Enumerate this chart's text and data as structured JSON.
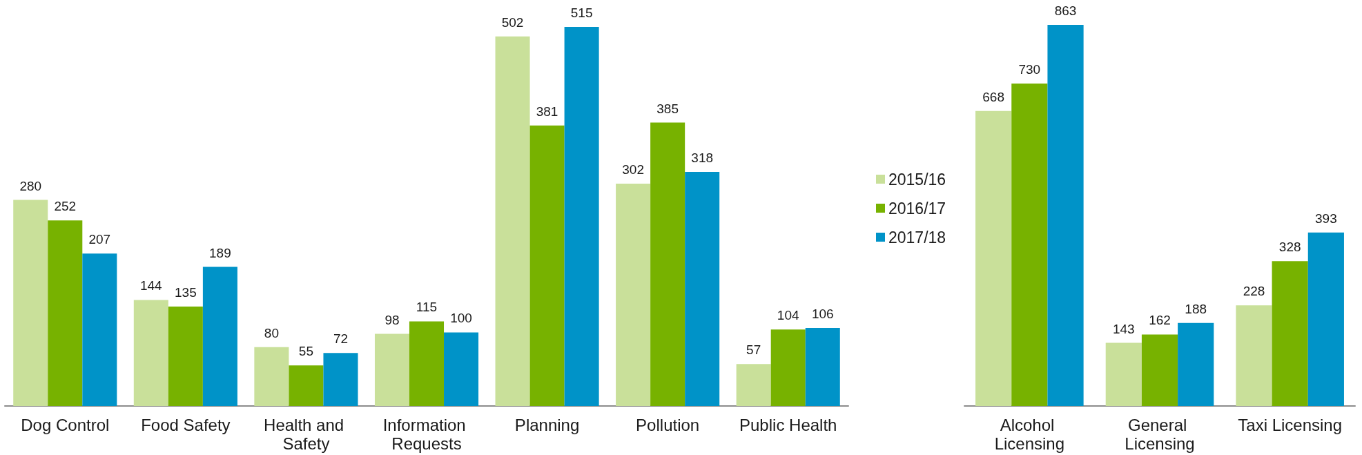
{
  "chart_data": [
    {
      "type": "bar",
      "categories": [
        "Dog Control",
        "Food Safety",
        "Health and Safety",
        "Information Requests",
        "Planning",
        "Pollution",
        "Public Health"
      ],
      "series": [
        {
          "name": "2015/16",
          "color": "#c9e09a",
          "values": [
            280,
            144,
            80,
            98,
            502,
            302,
            57
          ]
        },
        {
          "name": "2016/17",
          "color": "#77b200",
          "values": [
            252,
            135,
            55,
            115,
            381,
            385,
            104
          ]
        },
        {
          "name": "2017/18",
          "color": "#0093c8",
          "values": [
            207,
            189,
            72,
            100,
            515,
            318,
            106
          ]
        }
      ],
      "data_labels": true,
      "legend": "right"
    },
    {
      "type": "bar",
      "categories": [
        "Alcohol Licensing",
        "General Licensing",
        "Taxi Licensing"
      ],
      "series": [
        {
          "name": "2015/16",
          "color": "#c9e09a",
          "values": [
            668,
            143,
            228
          ]
        },
        {
          "name": "2016/17",
          "color": "#77b200",
          "values": [
            730,
            162,
            328
          ]
        },
        {
          "name": "2017/18",
          "color": "#0093c8",
          "values": [
            863,
            188,
            393
          ]
        }
      ],
      "data_labels": true,
      "legend": false
    }
  ]
}
